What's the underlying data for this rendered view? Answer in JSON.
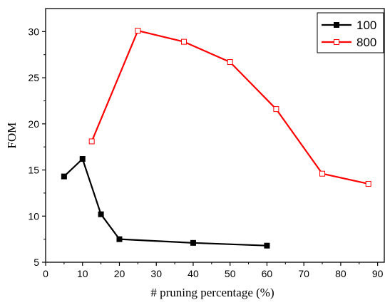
{
  "chart_data": {
    "type": "line",
    "title": "",
    "xlabel": "# pruning percentage (%)",
    "ylabel": "FOM",
    "xlim": [
      0,
      92
    ],
    "ylim": [
      5,
      32.5
    ],
    "xticks": [
      0,
      10,
      20,
      30,
      40,
      50,
      60,
      70,
      80,
      90
    ],
    "yticks": [
      5,
      10,
      15,
      20,
      25,
      30
    ],
    "grid": false,
    "legend_position": "top-right",
    "series": [
      {
        "name": "100",
        "color": "#000000",
        "marker": "filled-square",
        "x": [
          5,
          10,
          15,
          20,
          40,
          60
        ],
        "y": [
          14.3,
          16.2,
          10.2,
          7.5,
          7.1,
          6.8
        ]
      },
      {
        "name": "800",
        "color": "#ff0000",
        "marker": "hollow-square",
        "x": [
          12.5,
          25,
          37.5,
          50,
          62.5,
          75,
          87.5
        ],
        "y": [
          18.1,
          30.1,
          28.9,
          26.7,
          21.6,
          14.6,
          13.5
        ]
      }
    ]
  }
}
